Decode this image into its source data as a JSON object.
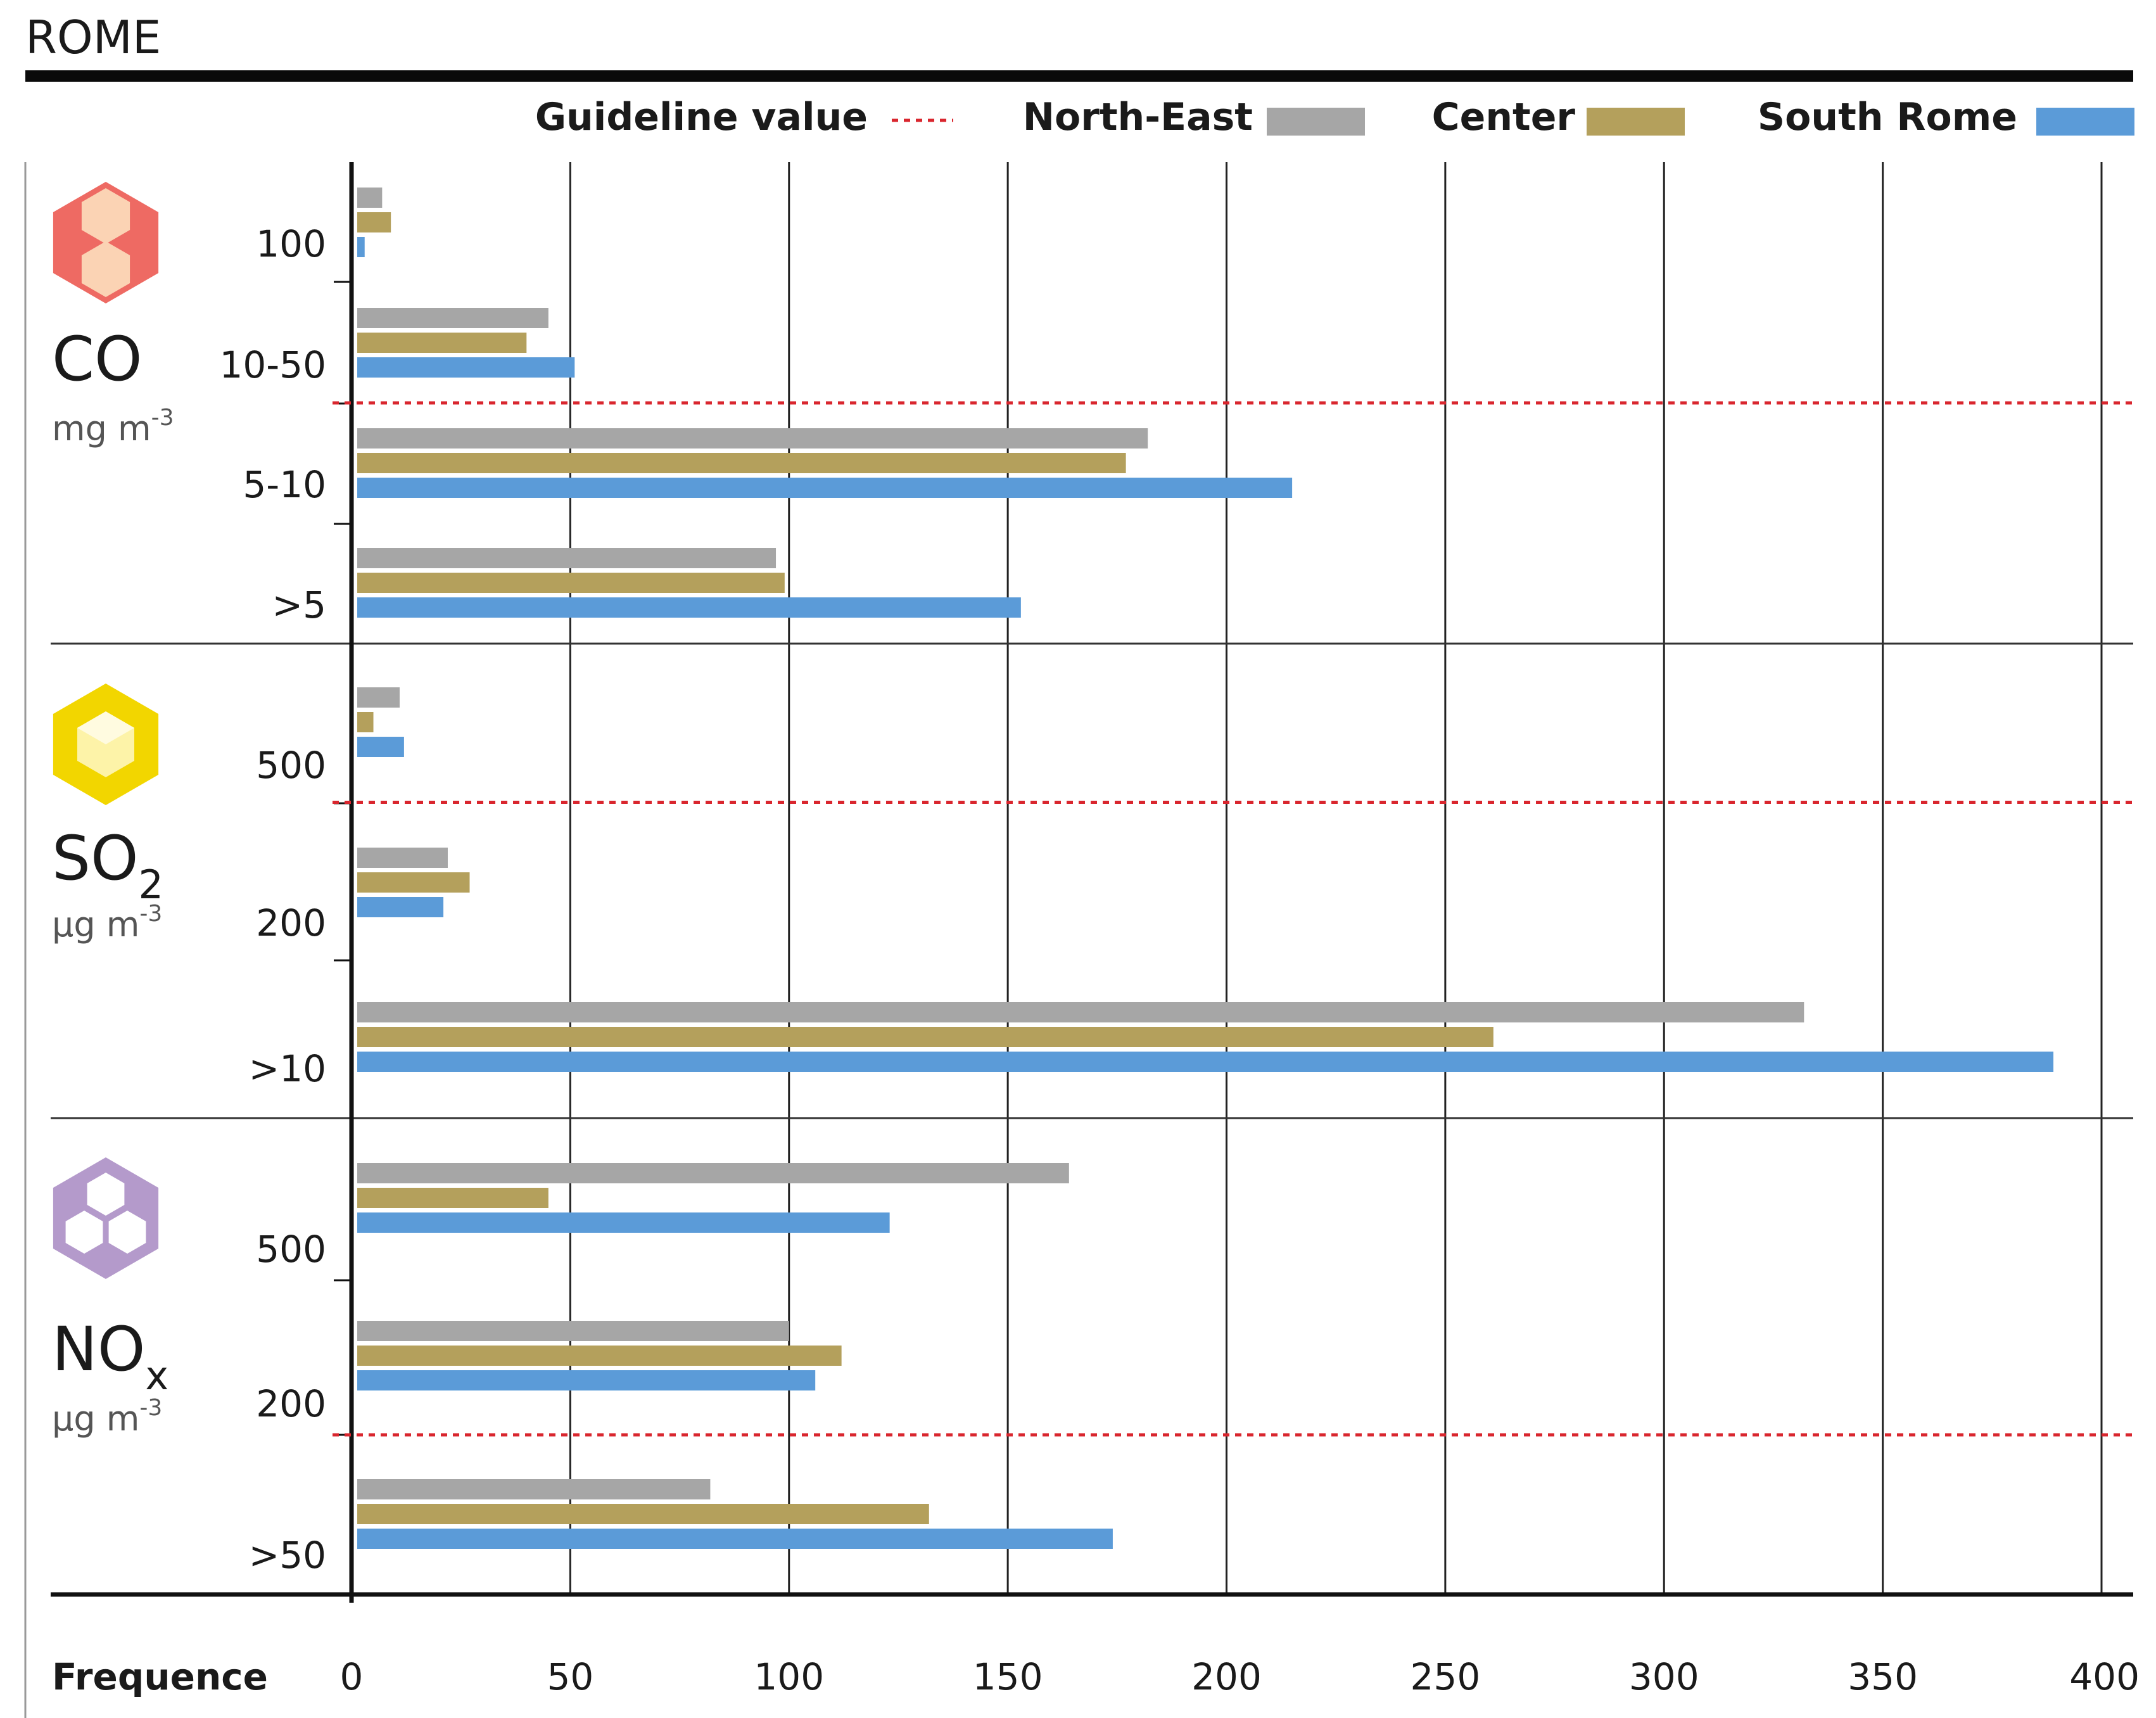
{
  "chart_data": {
    "type": "bar",
    "orientation": "horizontal",
    "title": "ROME",
    "xlabel": "Frequence",
    "xlim": [
      0,
      400
    ],
    "xticks": [
      "0",
      "50",
      "100",
      "150",
      "200",
      "250",
      "300",
      "350",
      "400"
    ],
    "grid": true,
    "legend": {
      "placement": "top",
      "guideline_label": "Guideline value",
      "series": [
        {
          "name": "North-East",
          "color": "#a6a6a6"
        },
        {
          "name": "Center",
          "color": "#b4a05c"
        },
        {
          "name": "South Rome",
          "color": "#5b9bd8"
        }
      ]
    },
    "guideline_color": "#d9262e",
    "panels": [
      {
        "pollutant": "CO",
        "pollutant_sub": "",
        "unit": "mg m",
        "unit_sup": "-3",
        "icon": "co-hexagon-icon",
        "icon_color": "#ee6a63",
        "icon_inner_color": "#fbd3b4",
        "categories": [
          "100",
          "10-50",
          "5-10",
          ">5"
        ],
        "guideline_after_group": 2,
        "values": {
          "North-East": [
            7,
            45,
            182,
            97
          ],
          "Center": [
            9,
            40,
            177,
            99
          ],
          "South Rome": [
            3,
            51,
            215,
            153
          ]
        }
      },
      {
        "pollutant": "SO",
        "pollutant_sub": "2",
        "unit": "µg m",
        "unit_sup": "-3",
        "icon": "so2-hexagon-icon",
        "icon_color": "#f2d600",
        "icon_inner_color": "#fdf3a8",
        "categories": [
          "500",
          "200",
          ">10"
        ],
        "guideline_after_group": 1,
        "values": {
          "North-East": [
            11,
            22,
            332
          ],
          "Center": [
            5,
            27,
            261
          ],
          "South Rome": [
            12,
            21,
            389
          ]
        }
      },
      {
        "pollutant": "NO",
        "pollutant_sub": "x",
        "unit": "µg m",
        "unit_sup": "-3",
        "icon": "nox-hexagon-icon",
        "icon_color": "#b49acb",
        "icon_inner_color": "#ffffff",
        "categories": [
          "500",
          "200",
          ">50"
        ],
        "guideline_after_group": 2,
        "values": {
          "North-East": [
            164,
            100,
            82
          ],
          "Center": [
            45,
            112,
            132
          ],
          "South Rome": [
            123,
            106,
            174
          ]
        }
      }
    ]
  }
}
